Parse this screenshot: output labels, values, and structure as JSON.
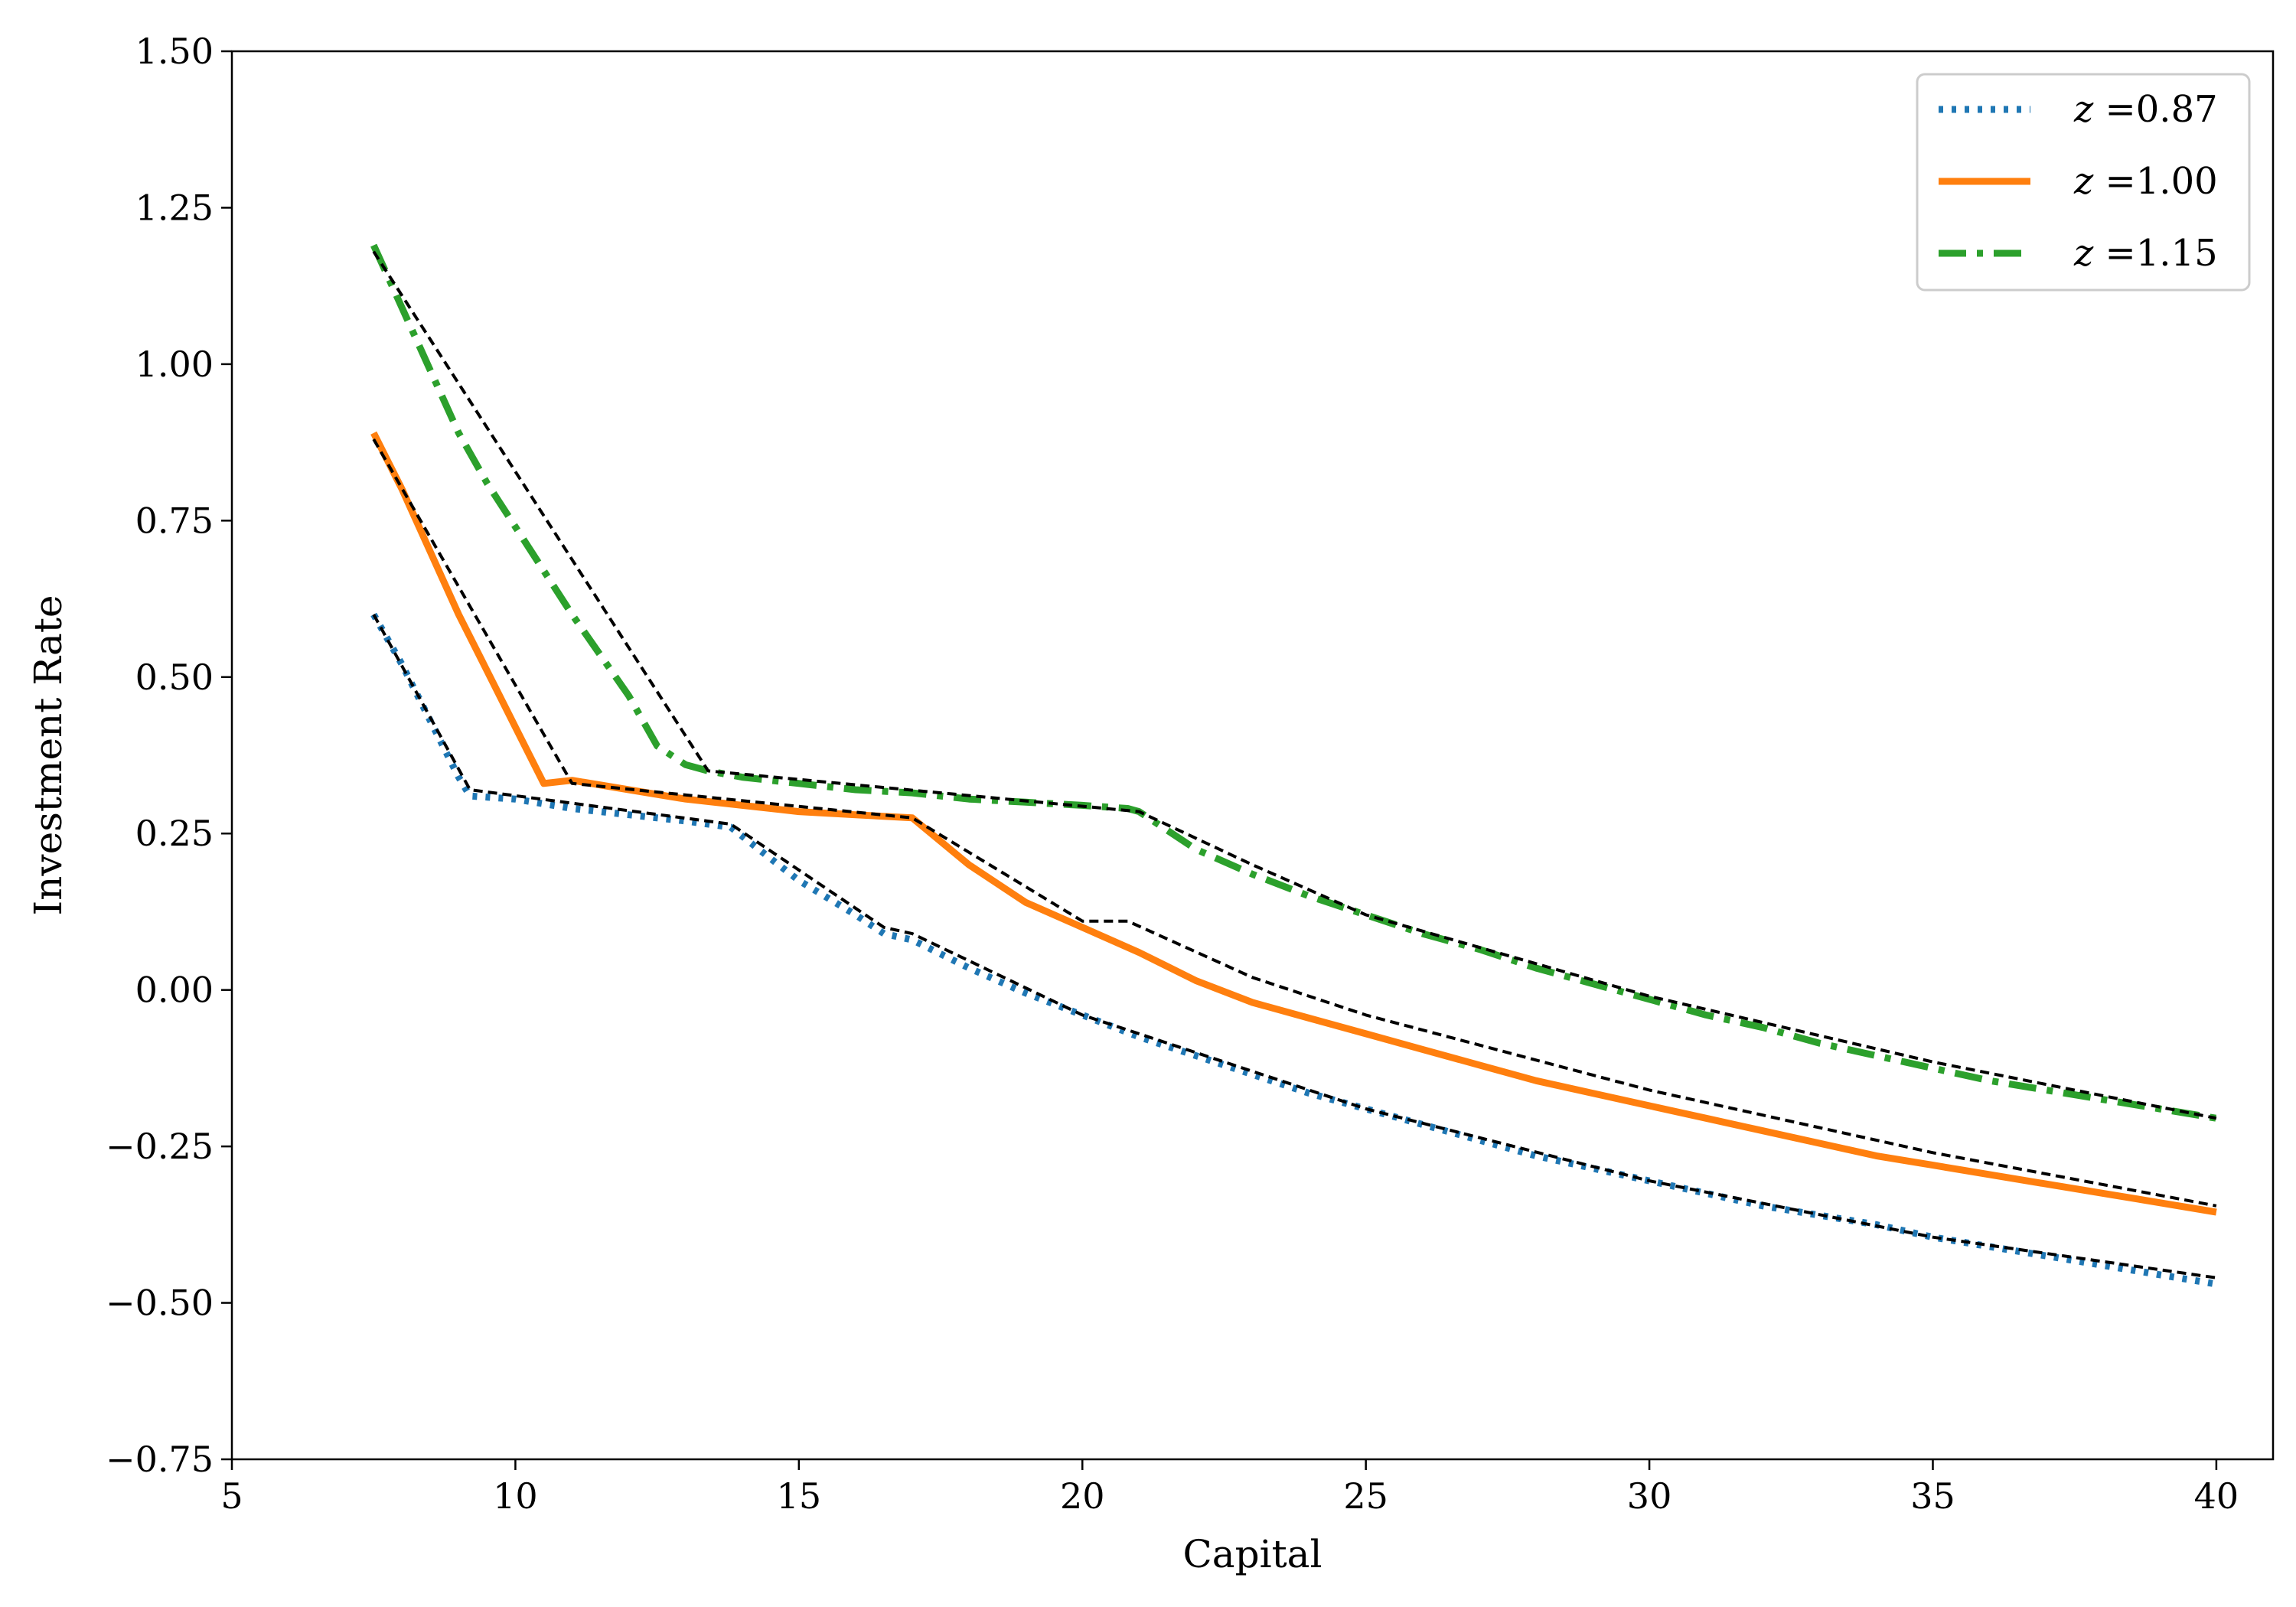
{
  "chart_data": {
    "type": "line",
    "xlabel": "Capital",
    "ylabel": "Investment Rate",
    "xlim": [
      5,
      41
    ],
    "ylim": [
      -0.75,
      1.5
    ],
    "xticks": [
      5,
      10,
      15,
      20,
      25,
      30,
      35,
      40
    ],
    "yticks": [
      -0.75,
      -0.5,
      -0.25,
      0.0,
      0.25,
      0.5,
      0.75,
      1.0,
      1.25,
      1.5
    ],
    "xtick_labels": [
      "5",
      "10",
      "15",
      "20",
      "25",
      "30",
      "35",
      "40"
    ],
    "ytick_labels": [
      "−0.75",
      "−0.50",
      "−0.25",
      "0.00",
      "0.25",
      "0.50",
      "0.75",
      "1.00",
      "1.25",
      "1.50"
    ],
    "grid": false,
    "legend_position": "top-right",
    "series": [
      {
        "name": "z =0.87",
        "legend_var": "z",
        "legend_value": "=0.87",
        "color": "#1f77b4",
        "style": "dotted",
        "x": [
          7.5,
          8,
          8.5,
          9,
          9.2,
          10,
          11,
          12,
          13,
          13.8,
          14.5,
          15,
          16,
          16.5,
          17,
          18,
          19,
          20,
          21,
          22,
          23,
          24,
          25,
          26,
          27,
          28,
          29,
          30,
          31,
          32,
          33,
          34,
          35,
          36,
          37,
          38,
          39,
          40
        ],
        "y": [
          0.6,
          0.52,
          0.43,
          0.34,
          0.31,
          0.305,
          0.29,
          0.28,
          0.27,
          0.26,
          0.21,
          0.175,
          0.12,
          0.09,
          0.08,
          0.035,
          -0.005,
          -0.04,
          -0.075,
          -0.105,
          -0.135,
          -0.165,
          -0.19,
          -0.215,
          -0.24,
          -0.265,
          -0.285,
          -0.305,
          -0.325,
          -0.345,
          -0.36,
          -0.375,
          -0.395,
          -0.41,
          -0.425,
          -0.44,
          -0.455,
          -0.47
        ]
      },
      {
        "name": "z =1.00",
        "legend_var": "z",
        "legend_value": "=1.00",
        "color": "#ff7f0e",
        "style": "solid",
        "x": [
          7.5,
          8,
          8.5,
          9,
          9.5,
          10,
          10.5,
          11,
          12,
          13,
          14,
          15,
          16,
          17,
          18,
          19,
          20,
          21,
          22,
          23,
          24,
          25,
          26,
          27,
          28,
          29,
          30,
          31,
          32,
          33,
          34,
          35,
          36,
          37,
          38,
          39,
          40
        ],
        "y": [
          0.89,
          0.8,
          0.7,
          0.6,
          0.51,
          0.42,
          0.33,
          0.335,
          0.32,
          0.305,
          0.295,
          0.285,
          0.28,
          0.275,
          0.2,
          0.14,
          0.1,
          0.06,
          0.015,
          -0.02,
          -0.045,
          -0.07,
          -0.095,
          -0.12,
          -0.145,
          -0.165,
          -0.185,
          -0.205,
          -0.225,
          -0.245,
          -0.265,
          -0.28,
          -0.295,
          -0.31,
          -0.325,
          -0.34,
          -0.355
        ]
      },
      {
        "name": "z =1.15",
        "legend_var": "z",
        "legend_value": "=1.15",
        "color": "#2ca02c",
        "style": "dashdot",
        "x": [
          7.5,
          8,
          8.5,
          9,
          9.5,
          10,
          11,
          12,
          12.5,
          13,
          13.4,
          14,
          15,
          16,
          17,
          18,
          19,
          20,
          20.8,
          21,
          22,
          23,
          24,
          25,
          26,
          27,
          28,
          29,
          30,
          31,
          32,
          33,
          34,
          35,
          36,
          37,
          38,
          39,
          40
        ],
        "y": [
          1.19,
          1.09,
          0.99,
          0.89,
          0.81,
          0.74,
          0.6,
          0.47,
          0.39,
          0.36,
          0.35,
          0.34,
          0.33,
          0.32,
          0.315,
          0.305,
          0.3,
          0.295,
          0.29,
          0.285,
          0.225,
          0.185,
          0.15,
          0.12,
          0.09,
          0.065,
          0.035,
          0.01,
          -0.015,
          -0.04,
          -0.06,
          -0.085,
          -0.105,
          -0.125,
          -0.145,
          -0.16,
          -0.175,
          -0.19,
          -0.205
        ]
      }
    ],
    "overlay_series": [
      {
        "color": "#000000",
        "style": "dashed",
        "x": [
          7.5,
          9.2,
          13.8,
          16.5,
          17,
          20,
          21,
          25,
          30,
          35,
          40
        ],
        "y": [
          0.6,
          0.32,
          0.265,
          0.1,
          0.09,
          -0.04,
          -0.07,
          -0.19,
          -0.305,
          -0.395,
          -0.46
        ]
      },
      {
        "color": "#000000",
        "style": "dashed",
        "x": [
          7.5,
          11,
          17,
          20,
          20.8,
          23,
          25,
          30,
          35,
          40
        ],
        "y": [
          0.88,
          0.33,
          0.275,
          0.11,
          0.11,
          0.02,
          -0.04,
          -0.16,
          -0.26,
          -0.345
        ]
      },
      {
        "color": "#000000",
        "style": "dashed",
        "x": [
          7.5,
          13.4,
          21,
          23,
          25,
          30,
          35,
          40
        ],
        "y": [
          1.18,
          0.35,
          0.285,
          0.2,
          0.12,
          -0.01,
          -0.115,
          -0.205
        ]
      }
    ]
  }
}
